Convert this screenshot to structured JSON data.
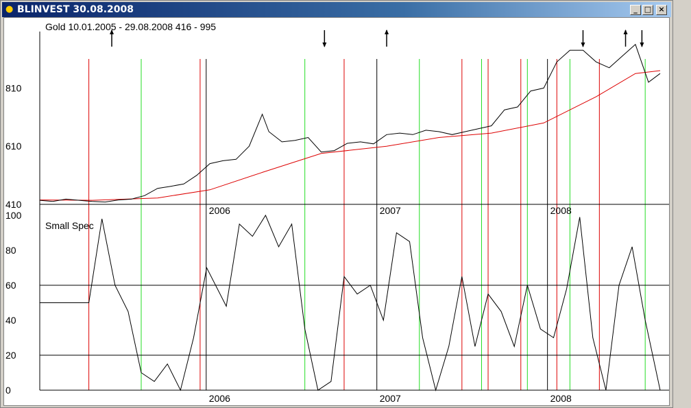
{
  "window": {
    "title": "BLINVEST  30.08.2008",
    "buttons": {
      "minimize": "_",
      "maximize": "□",
      "close": "×"
    }
  },
  "chart_data": [
    {
      "type": "line",
      "title": "Gold  10.01.2005 - 29.08.2008  416 - 995",
      "ylim": [
        410,
        995
      ],
      "yticks": [
        "410",
        "610",
        "810"
      ],
      "year_labels": [
        "2006",
        "2007",
        "2008"
      ],
      "series": [
        {
          "color": "#000000",
          "x": [
            "2005-01-10",
            "2005-02-07",
            "2005-03-07",
            "2005-04-04",
            "2005-05-02",
            "2005-05-30",
            "2005-06-27",
            "2005-07-25",
            "2005-08-22",
            "2005-09-19",
            "2005-10-17",
            "2005-11-14",
            "2005-12-12",
            "2006-01-09",
            "2006-02-06",
            "2006-03-06",
            "2006-04-03",
            "2006-05-01",
            "2006-05-15",
            "2006-06-12",
            "2006-07-10",
            "2006-08-07",
            "2006-09-04",
            "2006-10-02",
            "2006-10-30",
            "2006-11-27",
            "2006-12-25",
            "2007-01-22",
            "2007-02-19",
            "2007-03-19",
            "2007-04-16",
            "2007-05-14",
            "2007-06-11",
            "2007-07-09",
            "2007-08-06",
            "2007-09-03",
            "2007-10-01",
            "2007-10-29",
            "2007-11-26",
            "2007-12-24",
            "2008-01-21",
            "2008-02-18",
            "2008-03-17",
            "2008-04-14",
            "2008-05-12",
            "2008-06-09",
            "2008-07-07",
            "2008-08-04",
            "2008-08-29"
          ],
          "values": [
            424,
            420,
            428,
            424,
            420,
            418,
            425,
            428,
            440,
            465,
            472,
            480,
            510,
            550,
            560,
            565,
            610,
            720,
            660,
            625,
            630,
            640,
            590,
            595,
            620,
            625,
            618,
            650,
            655,
            650,
            665,
            660,
            650,
            660,
            670,
            680,
            735,
            745,
            800,
            810,
            900,
            940,
            940,
            900,
            880,
            920,
            960,
            830,
            860
          ]
        },
        {
          "color": "#dd0000",
          "x": [
            "2005-01-10",
            "2005-05-02",
            "2005-09-19",
            "2006-01-09",
            "2006-05-01",
            "2006-09-04",
            "2007-01-22",
            "2007-05-14",
            "2007-09-03",
            "2007-12-24",
            "2008-04-14",
            "2008-07-07",
            "2008-08-29"
          ],
          "values": [
            425,
            424,
            432,
            460,
            520,
            585,
            610,
            640,
            655,
            690,
            780,
            860,
            870
          ]
        }
      ],
      "markers": [
        {
          "date": "2005-06-13",
          "direction": "up"
        },
        {
          "date": "2006-09-11",
          "direction": "down"
        },
        {
          "date": "2007-01-22",
          "direction": "up"
        },
        {
          "date": "2008-03-17",
          "direction": "down"
        },
        {
          "date": "2008-06-16",
          "direction": "up"
        },
        {
          "date": "2008-07-21",
          "direction": "down"
        }
      ],
      "vertical_lines": {
        "black": [
          "2006-01-01",
          "2007-01-01",
          "2008-01-01"
        ],
        "red": [
          "2005-04-25",
          "2005-12-19",
          "2006-10-23",
          "2007-07-02",
          "2007-08-27",
          "2007-11-05",
          "2008-01-21",
          "2008-04-21"
        ],
        "green": [
          "2005-08-15",
          "2006-07-31",
          "2007-04-02",
          "2007-08-13",
          "2007-11-19",
          "2008-02-18",
          "2008-07-28"
        ]
      }
    },
    {
      "type": "line",
      "title": "Small Spec",
      "ylim": [
        0,
        100
      ],
      "yticks": [
        "0",
        "20",
        "40",
        "60",
        "80",
        "100"
      ],
      "hlines": [
        20,
        60
      ],
      "year_labels": [
        "2006",
        "2007",
        "2008"
      ],
      "series": [
        {
          "color": "#000000",
          "x": [
            "2005-01-10",
            "2005-04-25",
            "2005-05-23",
            "2005-06-20",
            "2005-07-18",
            "2005-08-15",
            "2005-09-12",
            "2005-10-10",
            "2005-11-07",
            "2005-12-05",
            "2006-01-02",
            "2006-02-13",
            "2006-03-13",
            "2006-04-10",
            "2006-05-08",
            "2006-06-05",
            "2006-07-03",
            "2006-07-31",
            "2006-08-28",
            "2006-09-25",
            "2006-10-23",
            "2006-11-20",
            "2006-12-18",
            "2007-01-15",
            "2007-02-12",
            "2007-03-12",
            "2007-04-09",
            "2007-05-07",
            "2007-06-04",
            "2007-07-02",
            "2007-07-30",
            "2007-08-27",
            "2007-09-24",
            "2007-10-22",
            "2007-11-19",
            "2007-12-17",
            "2008-01-14",
            "2008-02-11",
            "2008-03-10",
            "2008-04-07",
            "2008-05-05",
            "2008-06-02",
            "2008-06-30",
            "2008-07-28",
            "2008-08-29"
          ],
          "values": [
            50,
            50,
            98,
            60,
            45,
            10,
            5,
            15,
            0,
            30,
            70,
            48,
            95,
            88,
            100,
            82,
            95,
            35,
            0,
            5,
            65,
            55,
            60,
            40,
            90,
            85,
            30,
            0,
            25,
            65,
            25,
            55,
            45,
            25,
            60,
            35,
            30,
            58,
            99,
            30,
            0,
            60,
            82,
            40,
            0
          ]
        }
      ],
      "vertical_lines": {
        "black": [
          "2006-01-01",
          "2007-01-01",
          "2008-01-01"
        ],
        "red": [
          "2005-04-25",
          "2005-12-19",
          "2006-10-23",
          "2007-07-02",
          "2007-08-27",
          "2007-11-05",
          "2008-01-21",
          "2008-04-21"
        ],
        "green": [
          "2005-08-15",
          "2006-07-31",
          "2007-04-02",
          "2007-08-13",
          "2007-11-19",
          "2008-02-18",
          "2008-07-28"
        ]
      }
    }
  ]
}
